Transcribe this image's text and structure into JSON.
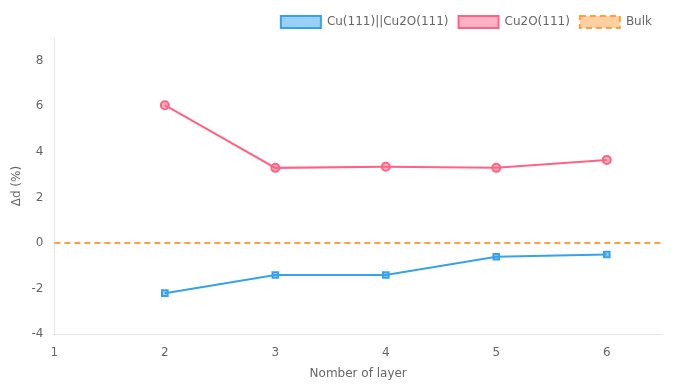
{
  "chart_data": {
    "type": "line",
    "x": [
      2,
      3,
      4,
      5,
      6
    ],
    "xlabel": "Nomber of layer",
    "ylabel": "Δd (%)",
    "series": [
      {
        "name": "Cu(111)||Cu2O(111)",
        "values": [
          -2.2,
          -1.4,
          -1.4,
          -0.6,
          -0.5
        ],
        "marker": "square"
      },
      {
        "name": "Cu2O(111)",
        "values": [
          6.05,
          3.3,
          3.35,
          3.3,
          3.65
        ],
        "marker": "circle"
      },
      {
        "name": "Bulk",
        "x": [
          1,
          6.5
        ],
        "values": [
          0.0,
          0.0
        ],
        "marker": "none",
        "line_style": "dashed"
      }
    ],
    "xlim": [
      1,
      6.5
    ],
    "ylim": [
      -4,
      9
    ],
    "xticks": [
      1,
      2,
      3,
      4,
      5,
      6
    ],
    "yticks": [
      -4,
      -2,
      0,
      2,
      4,
      6,
      8
    ],
    "grid": false,
    "legend": "upper right"
  }
}
